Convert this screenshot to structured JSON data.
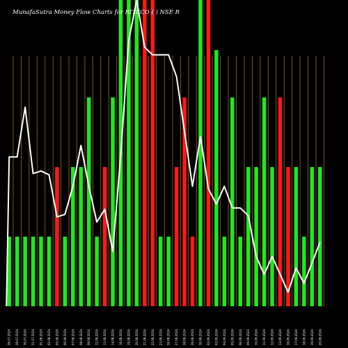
{
  "chart_data": {
    "type": "bar",
    "title": "MunafaSutra  Money Flow  Charts for RITECO  ( ) NSE  R",
    "categories": [
      "26.07.2024",
      "29.07.2024",
      "30.07.2024",
      "31.07.2024",
      "01.08.2024",
      "02.08.2024",
      "05.08.2024",
      "06.08.2024",
      "07.08.2024",
      "08.08.2024",
      "09.08.2024",
      "12.08.2024",
      "13.08.2024",
      "14.08.2024",
      "16.08.2024",
      "19.08.2024",
      "20.08.2024",
      "21.08.2024",
      "22.08.2024",
      "23.08.2024",
      "26.08.2024",
      "27.08.2024",
      "28.08.2024",
      "29.08.2024",
      "30.08.2024",
      "02.09.2024",
      "03.09.2024",
      "04.09.2024",
      "05.09.2024",
      "06.09.2024",
      "09.09.2024",
      "10.09.2024",
      "11.09.2024",
      "12.09.2024",
      "13.09.2024",
      "16.09.2024",
      "17.09.2024",
      "18.09.2024",
      "19.09.2024",
      "20.09.2024"
    ],
    "bar_levels": [
      1,
      1,
      1,
      1,
      1,
      1,
      2,
      1,
      2,
      2,
      3,
      1,
      2,
      3,
      5,
      5,
      5,
      5,
      5,
      1,
      1,
      2,
      3,
      1,
      5,
      5,
      4,
      1,
      3,
      1,
      2,
      2,
      3,
      2,
      3,
      2,
      2,
      1,
      2,
      2
    ],
    "bar_colors": [
      "green",
      "green",
      "green",
      "green",
      "green",
      "green",
      "red",
      "green",
      "green",
      "green",
      "green",
      "green",
      "red",
      "green",
      "green",
      "green",
      "green",
      "red",
      "red",
      "green",
      "green",
      "red",
      "red",
      "red",
      "green",
      "red",
      "green",
      "green",
      "green",
      "green",
      "green",
      "green",
      "green",
      "green",
      "red",
      "red",
      "green",
      "green",
      "green",
      "green"
    ],
    "price_line": [
      123,
      123,
      84,
      136,
      134,
      137,
      170,
      168,
      146,
      114,
      146,
      174,
      164,
      197,
      121,
      32,
      0,
      37,
      43,
      43,
      43,
      60,
      103,
      146,
      107,
      148,
      160,
      146,
      163,
      163,
      169,
      201,
      215,
      201,
      215,
      229,
      210,
      222,
      206,
      190
    ],
    "line_range": [
      0,
      240
    ],
    "bar_max_level": 5,
    "grid": true,
    "colors": {
      "background": "#000000",
      "bar_green": "#1fe81f",
      "bar_red": "#ff1818",
      "grid": "#9a6a2a",
      "line": "#ffffff",
      "text": "#ffffff"
    }
  }
}
